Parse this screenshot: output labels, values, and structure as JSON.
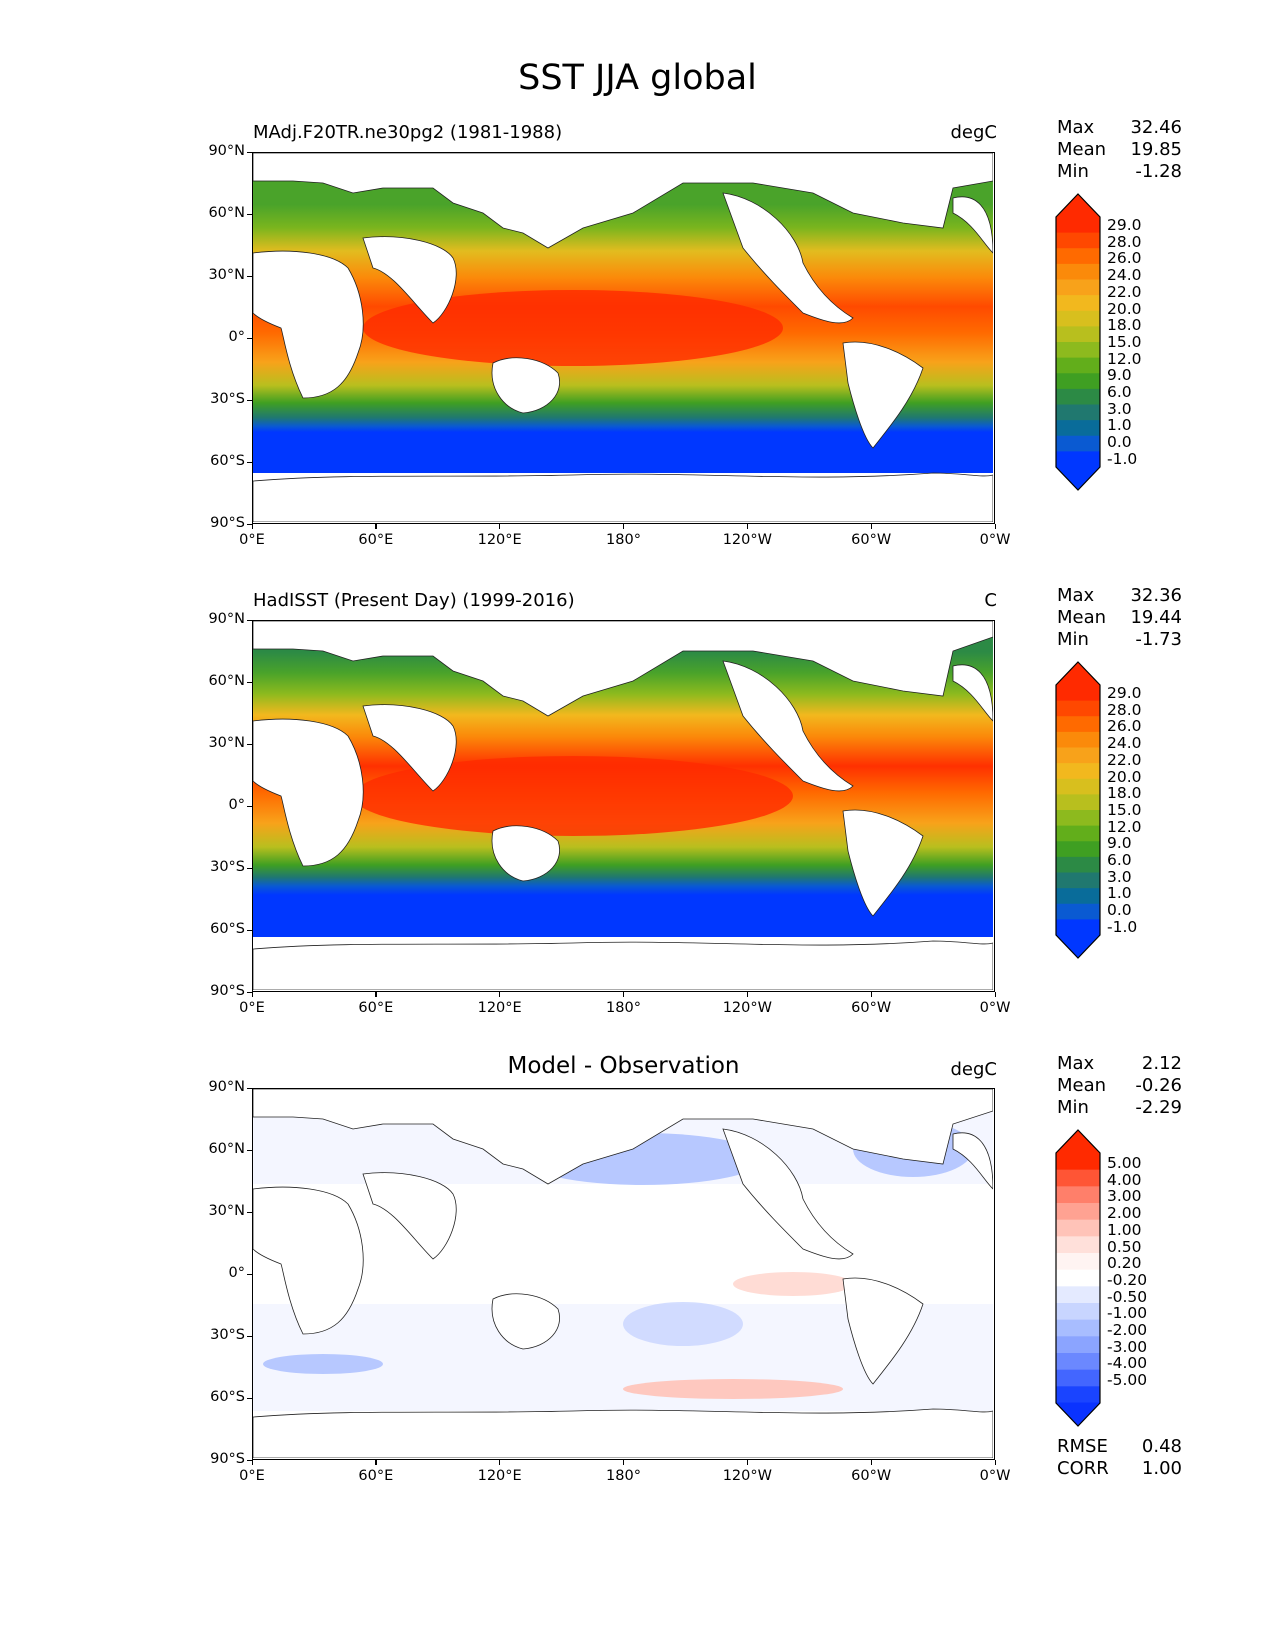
{
  "title": "SST JJA global",
  "axes": {
    "lat_labels": [
      "90°N",
      "60°N",
      "30°N",
      "0°",
      "30°S",
      "60°S",
      "90°S"
    ],
    "lon_labels": [
      "0°E",
      "60°E",
      "120°E",
      "180°",
      "120°W",
      "60°W",
      "0°W"
    ]
  },
  "panels": [
    {
      "left_title": "MAdj.F20TR.ne30pg2 (1981-1988)",
      "center_title": "",
      "units": "degC",
      "stats": {
        "max_label": "Max",
        "max": "32.46",
        "mean_label": "Mean",
        "mean": "19.85",
        "min_label": "Min",
        "min": "-1.28"
      },
      "colorbar_labels": [
        "29.0",
        "28.0",
        "26.0",
        "24.0",
        "22.0",
        "20.0",
        "18.0",
        "15.0",
        "12.0",
        "9.0",
        "6.0",
        "3.0",
        "1.0",
        "0.0",
        "-1.0"
      ],
      "colorbar_colors": [
        "#ff2a00",
        "#ff4800",
        "#ff6a00",
        "#fb8a0a",
        "#f8a21a",
        "#f2b81e",
        "#d8bf1e",
        "#b8bf1e",
        "#8dba1e",
        "#62ae1b",
        "#3f9f22",
        "#2c8a45",
        "#20786f",
        "#096c9a",
        "#0a5ad2",
        "#0037ff"
      ],
      "arrow_colors": {
        "top": "#ff2a00",
        "bottom": "#0037ff"
      }
    },
    {
      "left_title": "HadISST (Present Day) (1999-2016)",
      "center_title": "",
      "units": "C",
      "stats": {
        "max_label": "Max",
        "max": "32.36",
        "mean_label": "Mean",
        "mean": "19.44",
        "min_label": "Min",
        "min": "-1.73"
      },
      "colorbar_labels": [
        "29.0",
        "28.0",
        "26.0",
        "24.0",
        "22.0",
        "20.0",
        "18.0",
        "15.0",
        "12.0",
        "9.0",
        "6.0",
        "3.0",
        "1.0",
        "0.0",
        "-1.0"
      ],
      "colorbar_colors": [
        "#ff2a00",
        "#ff4800",
        "#ff6a00",
        "#fb8a0a",
        "#f8a21a",
        "#f2b81e",
        "#d8bf1e",
        "#b8bf1e",
        "#8dba1e",
        "#62ae1b",
        "#3f9f22",
        "#2c8a45",
        "#20786f",
        "#096c9a",
        "#0a5ad2",
        "#0037ff"
      ],
      "arrow_colors": {
        "top": "#ff2a00",
        "bottom": "#0037ff"
      }
    },
    {
      "left_title": "",
      "center_title": "Model - Observation",
      "units": "degC",
      "stats": {
        "max_label": "Max",
        "max": "2.12",
        "mean_label": "Mean",
        "mean": "-0.26",
        "min_label": "Min",
        "min": "-2.29"
      },
      "colorbar_labels": [
        "5.00",
        "4.00",
        "3.00",
        "2.00",
        "1.00",
        "0.50",
        "0.20",
        "-0.20",
        "-0.50",
        "-1.00",
        "-2.00",
        "-3.00",
        "-4.00",
        "-5.00"
      ],
      "colorbar_colors": [
        "#ff2a00",
        "#ff5535",
        "#ff7f6a",
        "#ffa292",
        "#ffc3b8",
        "#ffe0da",
        "#fff4f2",
        "#ffffff",
        "#e4eaff",
        "#c8d5ff",
        "#a8bdff",
        "#8ba4ff",
        "#6b88ff",
        "#4366ff",
        "#1a44ff"
      ],
      "arrow_colors": {
        "top": "#ff2a00",
        "bottom": "#0a33ff"
      },
      "footer": {
        "rmse_label": "RMSE",
        "rmse": "0.48",
        "corr_label": "CORR",
        "corr": "1.00"
      }
    }
  ]
}
